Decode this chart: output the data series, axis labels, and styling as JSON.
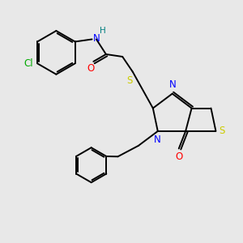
{
  "bg_color": "#e8e8e8",
  "bond_color": "#000000",
  "N_color": "#0000ff",
  "O_color": "#ff0000",
  "S_color": "#cccc00",
  "Cl_color": "#00aa00",
  "NH_color": "#008080",
  "figsize": [
    3.0,
    3.0
  ],
  "dpi": 100,
  "xlim": [
    0,
    10
  ],
  "ylim": [
    0,
    10
  ]
}
